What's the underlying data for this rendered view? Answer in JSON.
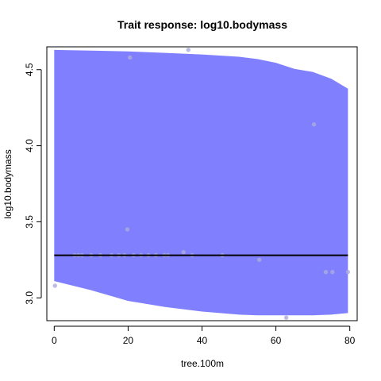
{
  "chart_data": {
    "type": "scatter",
    "title": "Trait response: log10.bodymass",
    "xlabel": "tree.100m",
    "ylabel": "log10.bodymass",
    "xlim": [
      -2,
      82
    ],
    "ylim": [
      2.85,
      4.65
    ],
    "x_ticks": [
      0,
      20,
      40,
      60,
      80
    ],
    "y_ticks": [
      3.0,
      3.5,
      4.0,
      4.5
    ],
    "x_tick_labels": [
      "0",
      "20",
      "40",
      "60",
      "80"
    ],
    "y_tick_labels": [
      "3.0",
      "3.5",
      "4.0",
      "4.5"
    ],
    "grid": false,
    "legend": "none",
    "colors": {
      "band": "#8080ff",
      "line": "#000000",
      "points": "#aaaadd"
    },
    "fit_line": {
      "x": [
        0,
        79.5
      ],
      "y": [
        3.28,
        3.28
      ]
    },
    "confidence_band": {
      "x": [
        0,
        10,
        20,
        30,
        40,
        50,
        55,
        60,
        65,
        70,
        75,
        79.5
      ],
      "upper": [
        4.63,
        4.625,
        4.62,
        4.61,
        4.6,
        4.585,
        4.57,
        4.545,
        4.505,
        4.485,
        4.44,
        4.375
      ],
      "lower": [
        3.11,
        3.05,
        2.98,
        2.94,
        2.91,
        2.89,
        2.885,
        2.885,
        2.885,
        2.885,
        2.89,
        2.9
      ]
    },
    "points": [
      {
        "x": 0.2,
        "y": 3.08
      },
      {
        "x": 5.5,
        "y": 3.28
      },
      {
        "x": 6.5,
        "y": 3.28
      },
      {
        "x": 7.5,
        "y": 3.28
      },
      {
        "x": 10.0,
        "y": 3.28
      },
      {
        "x": 12.5,
        "y": 3.28
      },
      {
        "x": 15.5,
        "y": 3.28
      },
      {
        "x": 17.5,
        "y": 3.28
      },
      {
        "x": 19.0,
        "y": 3.28
      },
      {
        "x": 19.8,
        "y": 3.45
      },
      {
        "x": 20.5,
        "y": 4.58
      },
      {
        "x": 21.5,
        "y": 3.28
      },
      {
        "x": 23.5,
        "y": 3.28
      },
      {
        "x": 25.5,
        "y": 3.28
      },
      {
        "x": 27.5,
        "y": 3.28
      },
      {
        "x": 29.8,
        "y": 3.28
      },
      {
        "x": 30.8,
        "y": 3.28
      },
      {
        "x": 35.0,
        "y": 3.3
      },
      {
        "x": 36.3,
        "y": 4.63
      },
      {
        "x": 37.3,
        "y": 3.28
      },
      {
        "x": 45.5,
        "y": 3.28
      },
      {
        "x": 55.5,
        "y": 3.25
      },
      {
        "x": 62.8,
        "y": 2.87
      },
      {
        "x": 70.3,
        "y": 4.14
      },
      {
        "x": 73.5,
        "y": 3.17
      },
      {
        "x": 75.3,
        "y": 3.17
      },
      {
        "x": 79.5,
        "y": 3.17
      }
    ]
  }
}
